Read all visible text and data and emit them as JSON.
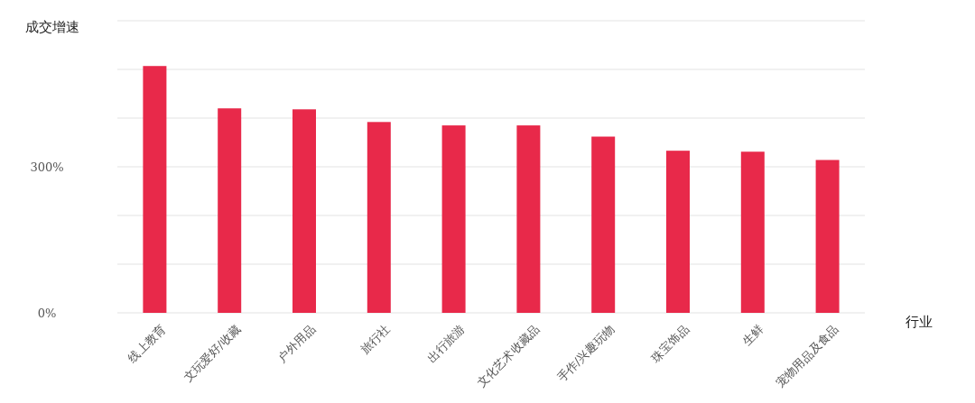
{
  "chart_data": {
    "type": "bar",
    "ylabel": "成交增速",
    "xlabel": "行业",
    "categories": [
      "线上教育",
      "文玩爱好/收藏",
      "户外用品",
      "旅行社",
      "出行旅游",
      "文化艺术收藏品",
      "手作/兴趣玩物",
      "珠宝饰品",
      "生鲜",
      "宠物用品及食品"
    ],
    "values": [
      507,
      420,
      418,
      392,
      385,
      385,
      362,
      333,
      331,
      314
    ],
    "color": "#e8294a",
    "ylim": [
      0,
      600
    ],
    "yticks": [
      {
        "value": 0,
        "label": "0%"
      },
      {
        "value": 100,
        "label": null
      },
      {
        "value": 200,
        "label": null
      },
      {
        "value": 300,
        "label": "300%"
      },
      {
        "value": 400,
        "label": null
      },
      {
        "value": 500,
        "label": null
      },
      {
        "value": 600,
        "label": null
      }
    ],
    "grid": "y"
  }
}
